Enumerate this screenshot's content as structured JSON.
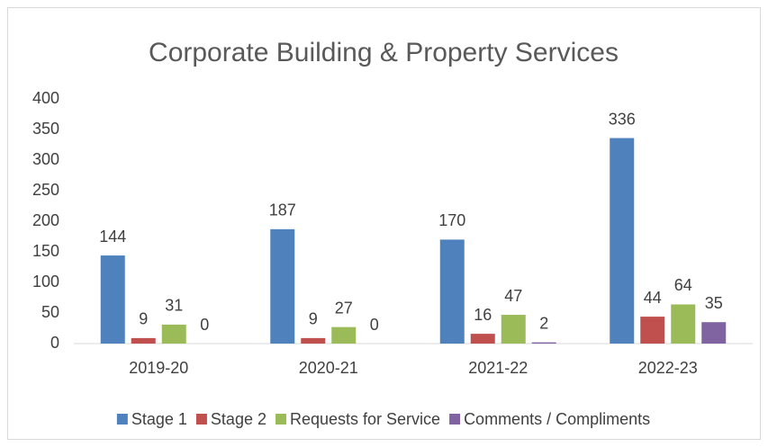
{
  "chart_data": {
    "type": "bar",
    "title": "Corporate Building & Property Services",
    "categories": [
      "2019-20",
      "2020-21",
      "2021-22",
      "2022-23"
    ],
    "series": [
      {
        "name": "Stage 1",
        "color": "#4f81bd",
        "values": [
          144,
          187,
          170,
          336
        ]
      },
      {
        "name": "Stage 2",
        "color": "#c0504d",
        "values": [
          9,
          9,
          16,
          44
        ]
      },
      {
        "name": "Requests for Service",
        "color": "#9bbb59",
        "values": [
          31,
          27,
          47,
          64
        ]
      },
      {
        "name": "Comments / Compliments",
        "color": "#8064a2",
        "values": [
          0,
          0,
          2,
          35
        ]
      }
    ],
    "ylim": [
      0,
      400
    ],
    "yticks": [
      0,
      50,
      100,
      150,
      200,
      250,
      300,
      350,
      400
    ],
    "grid": false,
    "legend": "bottom",
    "data_labels": true
  }
}
